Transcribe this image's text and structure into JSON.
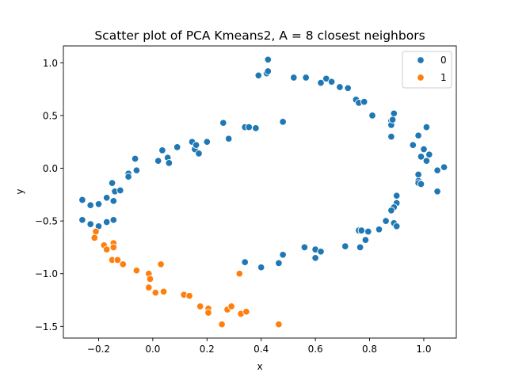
{
  "chart_data": {
    "type": "scatter",
    "title": "Scatter plot of PCA Kmeans2, A = 8 closest neighbors",
    "xlabel": "x",
    "ylabel": "y",
    "xlim": [
      -0.33,
      1.12
    ],
    "ylim": [
      -1.61,
      1.16
    ],
    "xticks": [
      -0.2,
      0.0,
      0.2,
      0.4,
      0.6,
      0.8,
      1.0
    ],
    "xtick_labels": [
      "−0.2",
      "0.0",
      "0.2",
      "0.4",
      "0.6",
      "0.8",
      "1.0"
    ],
    "yticks": [
      -1.5,
      -1.0,
      -0.5,
      0.0,
      0.5,
      1.0
    ],
    "ytick_labels": [
      "−1.5",
      "−1.0",
      "−0.5",
      "0.0",
      "0.5",
      "1.0"
    ],
    "grid": false,
    "legend_position": "top-right",
    "series": [
      {
        "name": "0",
        "color": "#1f77b4",
        "points": [
          [
            -0.26,
            -0.3
          ],
          [
            -0.23,
            -0.35
          ],
          [
            -0.2,
            -0.34
          ],
          [
            -0.26,
            -0.49
          ],
          [
            -0.23,
            -0.53
          ],
          [
            -0.2,
            -0.55
          ],
          [
            -0.17,
            -0.28
          ],
          [
            -0.15,
            -0.14
          ],
          [
            -0.14,
            -0.22
          ],
          [
            -0.12,
            -0.21
          ],
          [
            -0.17,
            -0.51
          ],
          [
            -0.145,
            -0.49
          ],
          [
            -0.145,
            -0.31
          ],
          [
            -0.09,
            -0.05
          ],
          [
            -0.09,
            -0.08
          ],
          [
            -0.065,
            0.09
          ],
          [
            -0.06,
            -0.02
          ],
          [
            0.02,
            0.07
          ],
          [
            0.035,
            0.17
          ],
          [
            0.055,
            0.1
          ],
          [
            0.06,
            0.05
          ],
          [
            0.09,
            0.2
          ],
          [
            0.145,
            0.25
          ],
          [
            0.155,
            0.18
          ],
          [
            0.16,
            0.22
          ],
          [
            0.17,
            0.14
          ],
          [
            0.2,
            0.25
          ],
          [
            0.26,
            0.43
          ],
          [
            0.28,
            0.28
          ],
          [
            0.34,
            0.39
          ],
          [
            0.355,
            0.39
          ],
          [
            0.38,
            0.38
          ],
          [
            0.48,
            0.44
          ],
          [
            0.39,
            0.88
          ],
          [
            0.42,
            0.9
          ],
          [
            0.425,
            0.92
          ],
          [
            0.425,
            1.03
          ],
          [
            0.52,
            0.86
          ],
          [
            0.565,
            0.86
          ],
          [
            0.62,
            0.81
          ],
          [
            0.64,
            0.85
          ],
          [
            0.66,
            0.82
          ],
          [
            0.69,
            0.77
          ],
          [
            0.72,
            0.76
          ],
          [
            0.75,
            0.65
          ],
          [
            0.76,
            0.62
          ],
          [
            0.78,
            0.63
          ],
          [
            0.81,
            0.5
          ],
          [
            0.88,
            0.45
          ],
          [
            0.88,
            0.41
          ],
          [
            0.89,
            0.52
          ],
          [
            0.885,
            0.46
          ],
          [
            0.88,
            0.3
          ],
          [
            0.96,
            0.22
          ],
          [
            0.98,
            0.31
          ],
          [
            1.0,
            0.18
          ],
          [
            0.99,
            0.11
          ],
          [
            1.01,
            0.39
          ],
          [
            1.01,
            0.07
          ],
          [
            1.02,
            0.13
          ],
          [
            1.05,
            -0.02
          ],
          [
            1.075,
            0.01
          ],
          [
            1.05,
            -0.22
          ],
          [
            0.98,
            -0.06
          ],
          [
            0.98,
            -0.12
          ],
          [
            0.98,
            -0.14
          ],
          [
            0.99,
            -0.15
          ],
          [
            0.9,
            -0.26
          ],
          [
            0.9,
            -0.33
          ],
          [
            0.89,
            -0.37
          ],
          [
            0.88,
            -0.4
          ],
          [
            0.89,
            -0.52
          ],
          [
            0.9,
            -0.55
          ],
          [
            0.86,
            -0.5
          ],
          [
            0.835,
            -0.58
          ],
          [
            0.795,
            -0.6
          ],
          [
            0.785,
            -0.68
          ],
          [
            0.76,
            -0.59
          ],
          [
            0.77,
            -0.59
          ],
          [
            0.765,
            -0.75
          ],
          [
            0.71,
            -0.74
          ],
          [
            0.6,
            -0.77
          ],
          [
            0.62,
            -0.79
          ],
          [
            0.56,
            -0.75
          ],
          [
            0.6,
            -0.85
          ],
          [
            0.48,
            -0.82
          ],
          [
            0.465,
            -0.9
          ],
          [
            0.4,
            -0.94
          ],
          [
            0.34,
            -0.89
          ]
        ]
      },
      {
        "name": "1",
        "color": "#ff7f0e",
        "points": [
          [
            -0.21,
            -0.6
          ],
          [
            -0.215,
            -0.66
          ],
          [
            -0.18,
            -0.73
          ],
          [
            -0.17,
            -0.77
          ],
          [
            -0.145,
            -0.71
          ],
          [
            -0.145,
            -0.75
          ],
          [
            -0.15,
            -0.87
          ],
          [
            -0.13,
            -0.87
          ],
          [
            -0.11,
            -0.91
          ],
          [
            -0.06,
            -0.97
          ],
          [
            -0.015,
            -1.0
          ],
          [
            -0.01,
            -1.05
          ],
          [
            -0.015,
            -1.13
          ],
          [
            0.01,
            -1.18
          ],
          [
            0.03,
            -0.91
          ],
          [
            0.04,
            -1.17
          ],
          [
            0.115,
            -1.2
          ],
          [
            0.135,
            -1.21
          ],
          [
            0.175,
            -1.31
          ],
          [
            0.205,
            -1.33
          ],
          [
            0.205,
            -1.37
          ],
          [
            0.255,
            -1.48
          ],
          [
            0.275,
            -1.34
          ],
          [
            0.29,
            -1.31
          ],
          [
            0.32,
            -1.0
          ],
          [
            0.325,
            -1.38
          ],
          [
            0.345,
            -1.36
          ],
          [
            0.465,
            -1.48
          ]
        ]
      }
    ]
  }
}
